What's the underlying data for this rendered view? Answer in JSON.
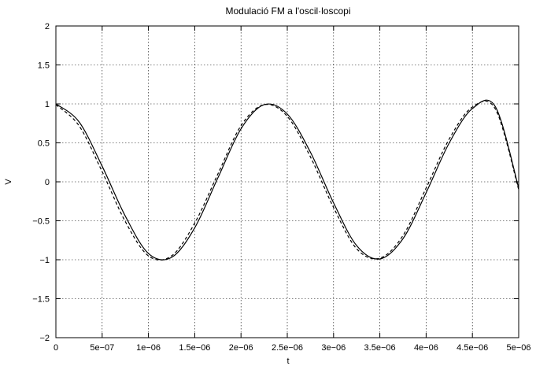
{
  "chart_data": {
    "type": "line",
    "title": "Modulació FM a l'oscil·loscopi",
    "xlabel": "t",
    "ylabel": "V",
    "xlim": [
      0,
      5e-06
    ],
    "ylim": [
      -2,
      2
    ],
    "grid": true,
    "x_ticks": [
      "0",
      "5e−07",
      "1e−06",
      "1.5e−06",
      "2e−06",
      "2.5e−06",
      "3e−06",
      "3.5e−06",
      "4e−06",
      "4.5e−06",
      "5e−06"
    ],
    "y_ticks": [
      "2",
      "1.5",
      "1",
      "0.5",
      "0",
      "−0.5",
      "−1",
      "−1.5",
      "−2"
    ],
    "x_tick_values": [
      0,
      5e-07,
      1e-06,
      1.5e-06,
      2e-06,
      2.5e-06,
      3e-06,
      3.5e-06,
      4e-06,
      4.5e-06,
      5e-06
    ],
    "y_tick_values": [
      2,
      1.5,
      1,
      0.5,
      0,
      -0.5,
      -1,
      -1.5,
      -2
    ],
    "series": [
      {
        "style": "solid",
        "color": "#000000",
        "x": [
          0,
          2.5e-07,
          5e-07,
          7.5e-07,
          1e-06,
          1.25e-06,
          1.5e-06,
          1.75e-06,
          2e-06,
          2.25e-06,
          2.5e-06,
          2.75e-06,
          3e-06,
          3.25e-06,
          3.5e-06,
          3.75e-06,
          4e-06,
          4.25e-06,
          4.5e-06,
          4.75e-06,
          5e-06
        ],
        "y": [
          1.0,
          0.77,
          0.2,
          -0.44,
          -0.92,
          -0.97,
          -0.59,
          0.05,
          0.68,
          0.99,
          0.87,
          0.38,
          -0.27,
          -0.82,
          -0.99,
          -0.73,
          -0.14,
          0.5,
          0.94,
          0.96,
          -0.08
        ]
      },
      {
        "style": "dashed",
        "color": "#000000",
        "x": [
          0,
          2.5e-07,
          5e-07,
          7.5e-07,
          1e-06,
          1.25e-06,
          1.5e-06,
          1.75e-06,
          2e-06,
          2.25e-06,
          2.5e-06,
          2.75e-06,
          3e-06,
          3.25e-06,
          3.5e-06,
          3.75e-06,
          4e-06,
          4.25e-06,
          4.5e-06,
          4.75e-06,
          5e-06
        ],
        "y": [
          0.99,
          0.72,
          0.13,
          -0.51,
          -0.95,
          -0.95,
          -0.53,
          0.1,
          0.72,
          0.99,
          0.84,
          0.32,
          -0.33,
          -0.86,
          -0.98,
          -0.69,
          -0.08,
          0.55,
          0.96,
          0.93,
          -0.1
        ]
      }
    ]
  }
}
